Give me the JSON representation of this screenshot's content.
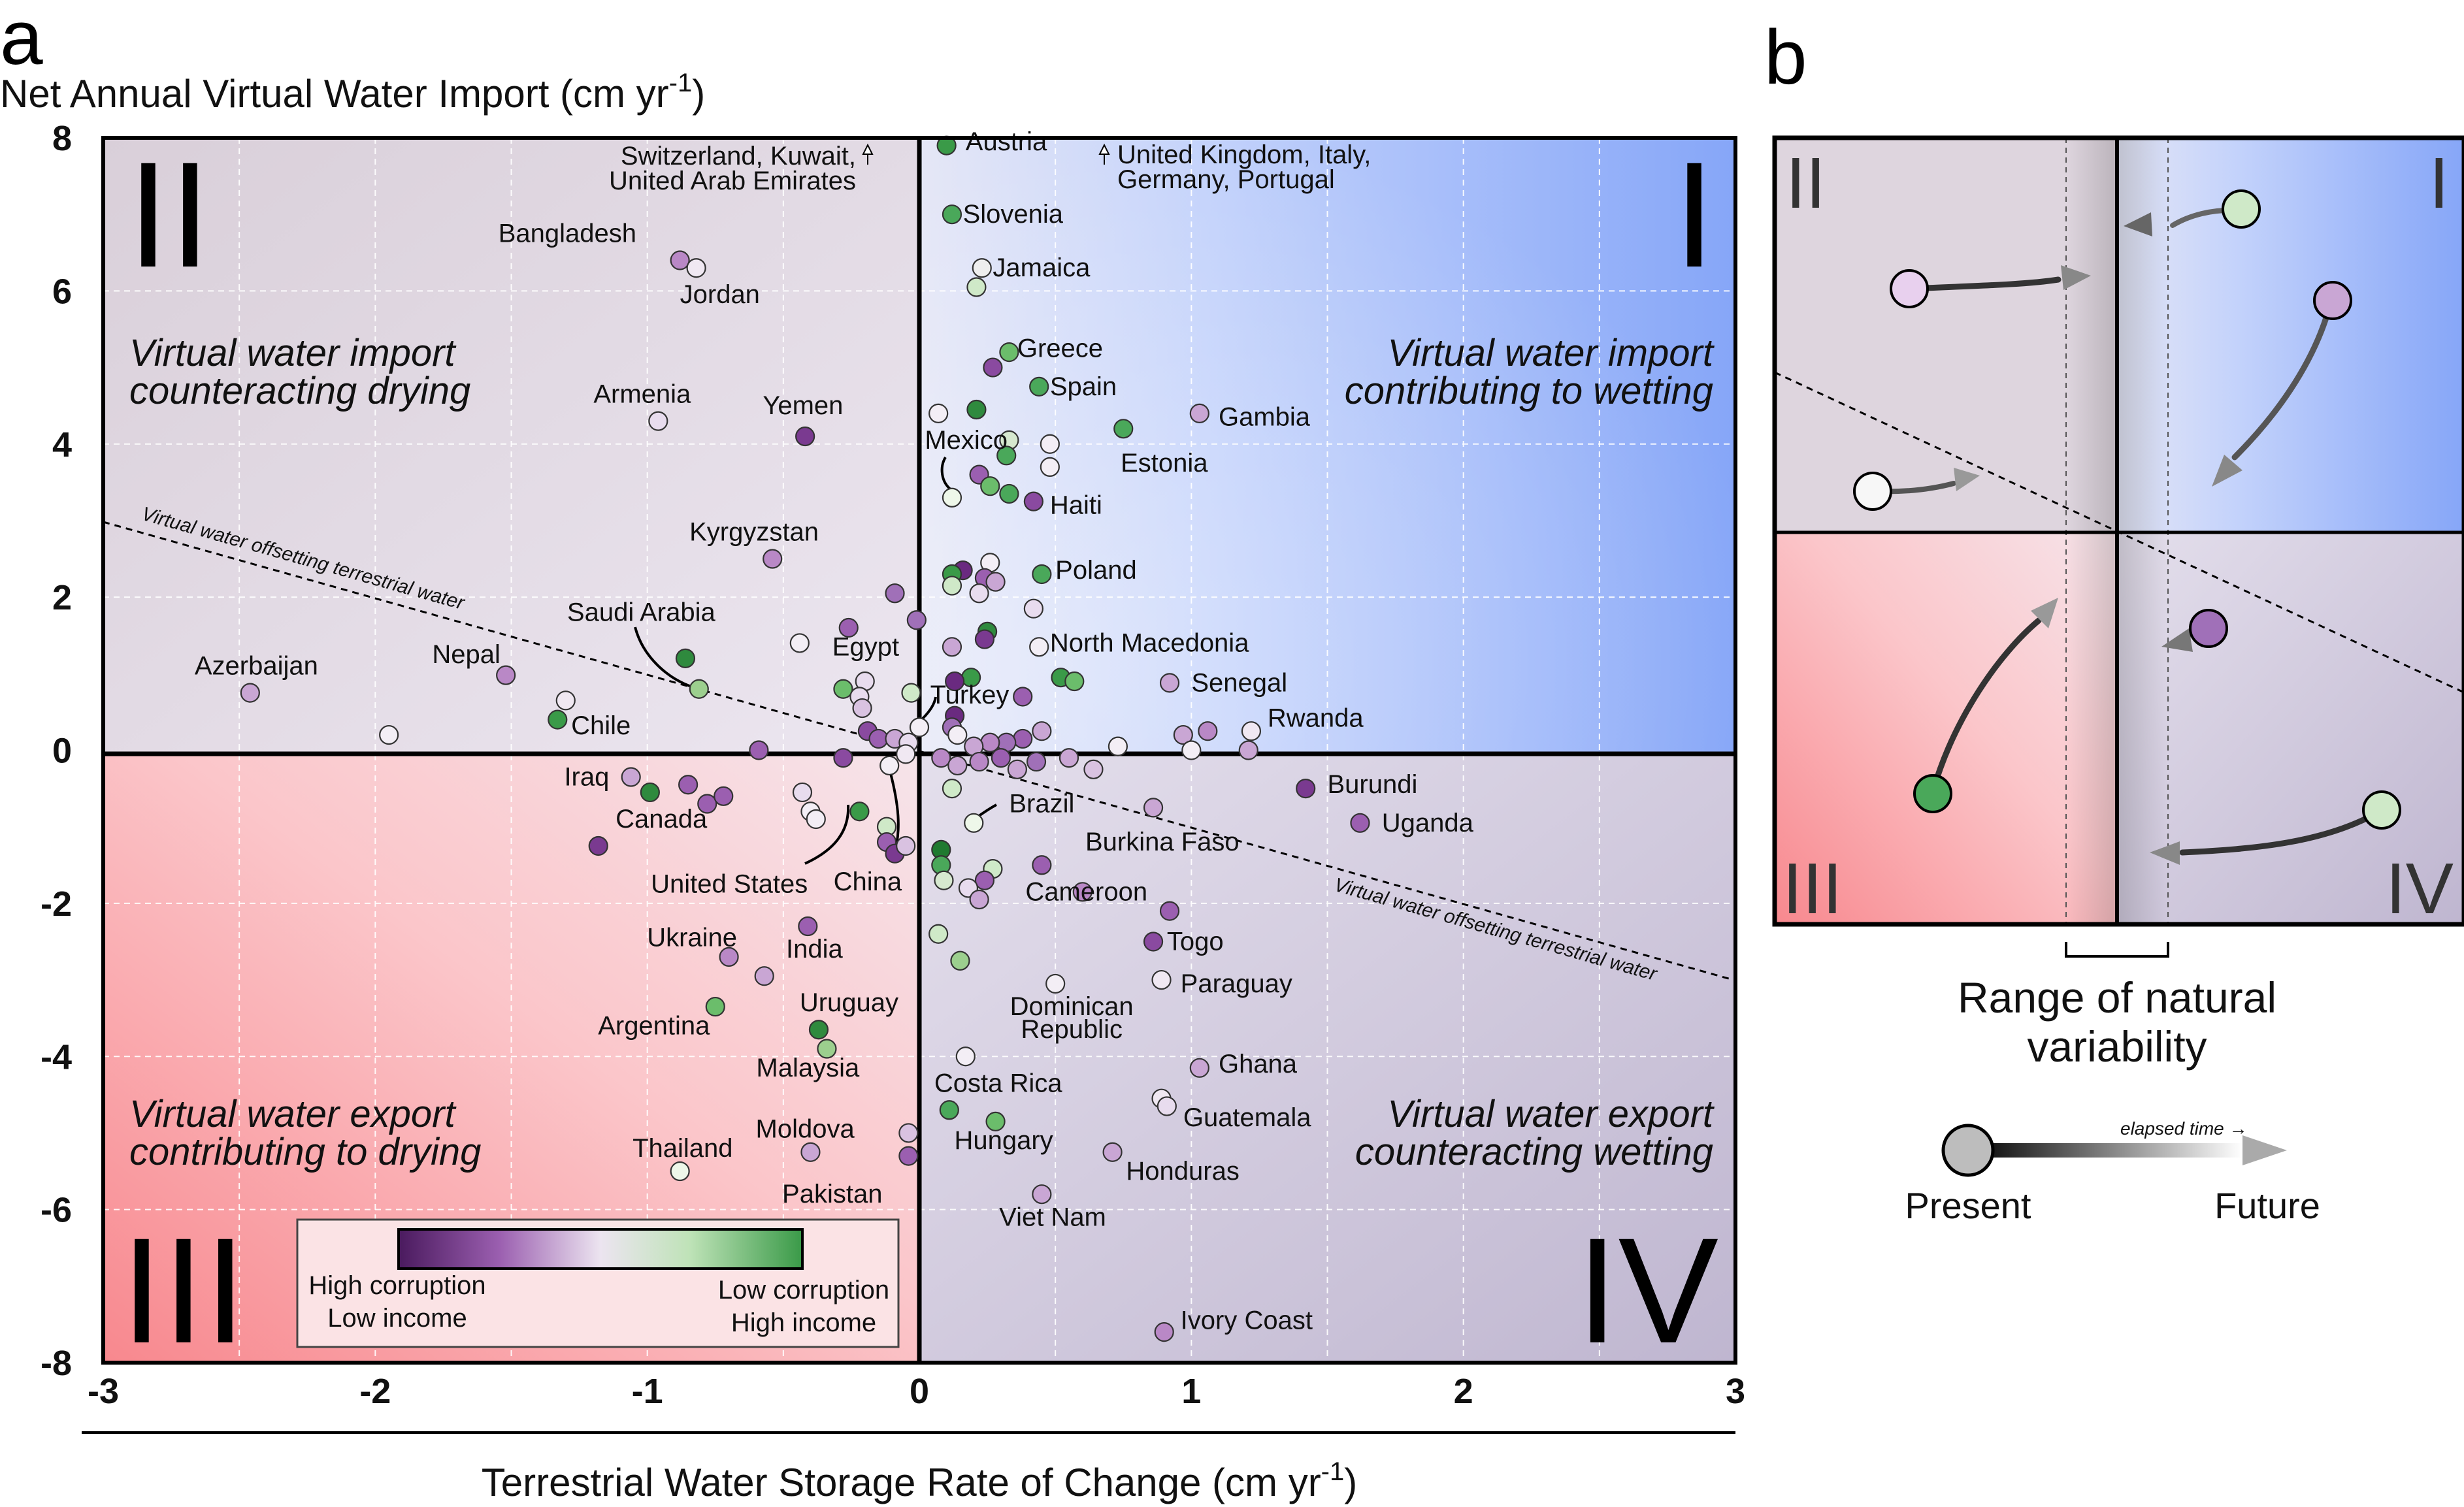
{
  "panel_a": {
    "letter": "a",
    "y_title": "Net Annual Virtual Water Import (cm yr",
    "y_title_sup": "-1",
    "y_title_end": ")",
    "x_title": "Terrestrial Water Storage Rate of Change (cm yr",
    "x_title_sup": "-1",
    "x_title_end": ")",
    "quadrants": {
      "q1": "I",
      "q2": "II",
      "q3": "III",
      "q4": "IV"
    },
    "quadrant_text": {
      "q2_l1": "Virtual water import",
      "q2_l2": "counteracting drying",
      "q1_l1": "Virtual water import",
      "q1_l2": "contributing to wetting",
      "q3_l1": "Virtual water export",
      "q3_l2": "contributing to drying",
      "q4_l1": "Virtual water export",
      "q4_l2": "counteracting wetting"
    },
    "diagonal_label": "Virtual water offsetting terrestrial water",
    "offchart_left_l1": "Switzerland, Kuwait,",
    "offchart_left_l2": "United Arab Emirates",
    "offchart_right_l1": "United Kingdom, Italy,",
    "offchart_right_l2": "Germany, Portugal",
    "legend": {
      "left_l1": "High corruption",
      "left_l2": "Low income",
      "right_l1": "Low corruption",
      "right_l2": "High income",
      "gradient": [
        "#4a1a5e",
        "#9b5fb0",
        "#e8dcee",
        "#bfe3b8",
        "#3a9a48"
      ]
    },
    "colors": {
      "q1": "#8aaaf8",
      "q2": "#dcd4de",
      "q3": "#f58f95",
      "q4": "#c5bfd4"
    }
  },
  "chart_data": {
    "type": "scatter",
    "xlabel": "Terrestrial Water Storage Rate of Change (cm yr-1)",
    "ylabel": "Net Annual Virtual Water Import (cm yr-1)",
    "xlim": [
      -3,
      3
    ],
    "ylim": [
      -8,
      8
    ],
    "xticks": [
      "-3",
      "-2",
      "-1",
      "0",
      "1",
      "2",
      "3"
    ],
    "yticks": [
      "8",
      "6",
      "4",
      "2",
      "0",
      "-2",
      "-4",
      "-6",
      "-8"
    ],
    "grid": true,
    "points": [
      {
        "x": 0.1,
        "y": 7.9,
        "c": "#3a9a48"
      },
      {
        "x": 0.12,
        "y": 7.0,
        "c": "#4aa85a"
      },
      {
        "x": 0.23,
        "y": 6.3,
        "c": "#eeeeee"
      },
      {
        "x": 0.21,
        "y": 6.05,
        "c": "#cfe9c8"
      },
      {
        "x": -0.88,
        "y": 6.4,
        "c": "#b988c6"
      },
      {
        "x": -0.82,
        "y": 6.3,
        "c": "#f0e8f2"
      },
      {
        "x": 0.33,
        "y": 5.2,
        "c": "#6bbd6b"
      },
      {
        "x": 0.27,
        "y": 5.0,
        "c": "#8a4aa0"
      },
      {
        "x": 0.44,
        "y": 4.75,
        "c": "#4aa85a"
      },
      {
        "x": 0.07,
        "y": 4.4,
        "c": "#f3eef5"
      },
      {
        "x": 0.21,
        "y": 4.45,
        "c": "#2f8a3e"
      },
      {
        "x": 0.75,
        "y": 4.2,
        "c": "#4aa85a"
      },
      {
        "x": 1.03,
        "y": 4.4,
        "c": "#c9a6d4"
      },
      {
        "x": -0.96,
        "y": 4.3,
        "c": "#e8dcee"
      },
      {
        "x": -0.42,
        "y": 4.1,
        "c": "#7a3a90"
      },
      {
        "x": 0.33,
        "y": 4.05,
        "c": "#d6e8cf"
      },
      {
        "x": 0.48,
        "y": 4.0,
        "c": "#f3eef5"
      },
      {
        "x": 0.32,
        "y": 3.85,
        "c": "#4aa85a"
      },
      {
        "x": 0.48,
        "y": 3.7,
        "c": "#f3eef5"
      },
      {
        "x": 0.22,
        "y": 3.6,
        "c": "#9b5fb0"
      },
      {
        "x": 0.26,
        "y": 3.45,
        "c": "#6bbd6b"
      },
      {
        "x": 0.33,
        "y": 3.35,
        "c": "#4aa85a"
      },
      {
        "x": 0.42,
        "y": 3.25,
        "c": "#8a4aa0"
      },
      {
        "x": 0.12,
        "y": 3.3,
        "c": "#eef7e9"
      },
      {
        "x": -0.54,
        "y": 2.5,
        "c": "#b988c6"
      },
      {
        "x": 0.26,
        "y": 2.45,
        "c": "#f3eef5"
      },
      {
        "x": 0.16,
        "y": 2.35,
        "c": "#6a2a80"
      },
      {
        "x": 0.12,
        "y": 2.3,
        "c": "#3a9a48"
      },
      {
        "x": 0.24,
        "y": 2.25,
        "c": "#9b5fb0"
      },
      {
        "x": 0.28,
        "y": 2.2,
        "c": "#c9a6d4"
      },
      {
        "x": 0.45,
        "y": 2.3,
        "c": "#4aa85a"
      },
      {
        "x": 0.12,
        "y": 2.15,
        "c": "#cfe9c8"
      },
      {
        "x": 0.22,
        "y": 2.05,
        "c": "#e8dcee"
      },
      {
        "x": -0.09,
        "y": 2.05,
        "c": "#a070b8"
      },
      {
        "x": 0.42,
        "y": 1.85,
        "c": "#e8dcee"
      },
      {
        "x": -0.01,
        "y": 1.7,
        "c": "#a070b8"
      },
      {
        "x": -0.26,
        "y": 1.6,
        "c": "#9b5fb0"
      },
      {
        "x": 0.25,
        "y": 1.55,
        "c": "#2f8a3e"
      },
      {
        "x": 0.24,
        "y": 1.45,
        "c": "#7a3a90"
      },
      {
        "x": -0.44,
        "y": 1.4,
        "c": "#f3eef5"
      },
      {
        "x": 0.12,
        "y": 1.35,
        "c": "#c9a6d4"
      },
      {
        "x": 0.44,
        "y": 1.35,
        "c": "#f3eef5"
      },
      {
        "x": -0.86,
        "y": 1.2,
        "c": "#2f8a3e"
      },
      {
        "x": 0.19,
        "y": 0.95,
        "c": "#3a9a48"
      },
      {
        "x": 0.52,
        "y": 0.95,
        "c": "#3a9a48"
      },
      {
        "x": 0.57,
        "y": 0.9,
        "c": "#6bbd6b"
      },
      {
        "x": 0.13,
        "y": 0.9,
        "c": "#6a2a80"
      },
      {
        "x": 0.92,
        "y": 0.88,
        "c": "#c9a6d4"
      },
      {
        "x": -0.2,
        "y": 0.9,
        "c": "#e8dcee"
      },
      {
        "x": -0.28,
        "y": 0.8,
        "c": "#6bbd6b"
      },
      {
        "x": -0.81,
        "y": 0.8,
        "c": "#9ccf8e"
      },
      {
        "x": -2.46,
        "y": 0.75,
        "c": "#c9a6d4"
      },
      {
        "x": -1.52,
        "y": 0.98,
        "c": "#b988c6"
      },
      {
        "x": -0.22,
        "y": 0.7,
        "c": "#e8dcee"
      },
      {
        "x": -0.03,
        "y": 0.75,
        "c": "#cfe9c8"
      },
      {
        "x": -1.3,
        "y": 0.65,
        "c": "#f0e8f2"
      },
      {
        "x": -0.21,
        "y": 0.55,
        "c": "#d9c2e1"
      },
      {
        "x": 0.38,
        "y": 0.7,
        "c": "#9b5fb0"
      },
      {
        "x": -1.33,
        "y": 0.4,
        "c": "#3a9a48"
      },
      {
        "x": 0.13,
        "y": 0.45,
        "c": "#6a2a80"
      },
      {
        "x": 0.12,
        "y": 0.3,
        "c": "#a070b8"
      },
      {
        "x": 0.14,
        "y": 0.2,
        "c": "#f3eef5"
      },
      {
        "x": 0.0,
        "y": 0.3,
        "c": "#f3eef5"
      },
      {
        "x": -0.19,
        "y": 0.25,
        "c": "#8a4aa0"
      },
      {
        "x": -0.15,
        "y": 0.15,
        "c": "#9b5fb0"
      },
      {
        "x": -0.09,
        "y": 0.15,
        "c": "#c9a6d4"
      },
      {
        "x": -0.04,
        "y": 0.1,
        "c": "#e8dcee"
      },
      {
        "x": 0.45,
        "y": 0.25,
        "c": "#c9a6d4"
      },
      {
        "x": 0.38,
        "y": 0.15,
        "c": "#9b5fb0"
      },
      {
        "x": 0.32,
        "y": 0.1,
        "c": "#a070b8"
      },
      {
        "x": 0.26,
        "y": 0.1,
        "c": "#b988c6"
      },
      {
        "x": 0.2,
        "y": 0.05,
        "c": "#c9a6d4"
      },
      {
        "x": -1.95,
        "y": 0.2,
        "c": "#f3eef5"
      },
      {
        "x": 0.97,
        "y": 0.2,
        "c": "#c9a6d4"
      },
      {
        "x": 1.06,
        "y": 0.25,
        "c": "#b988c6"
      },
      {
        "x": 1.22,
        "y": 0.25,
        "c": "#f0e8f2"
      },
      {
        "x": 0.73,
        "y": 0.05,
        "c": "#f3eef5"
      },
      {
        "x": 1.0,
        "y": 0.0,
        "c": "#f3eef5"
      },
      {
        "x": 1.21,
        "y": 0.0,
        "c": "#c9a6d4"
      },
      {
        "x": -0.59,
        "y": 0.0,
        "c": "#9b5fb0"
      },
      {
        "x": -0.28,
        "y": -0.1,
        "c": "#8a4aa0"
      },
      {
        "x": -0.11,
        "y": -0.2,
        "c": "#f3eef5"
      },
      {
        "x": -0.05,
        "y": -0.05,
        "c": "#f0e8f2"
      },
      {
        "x": 0.08,
        "y": -0.1,
        "c": "#b988c6"
      },
      {
        "x": 0.14,
        "y": -0.2,
        "c": "#c9a6d4"
      },
      {
        "x": 0.22,
        "y": -0.15,
        "c": "#b988c6"
      },
      {
        "x": 0.3,
        "y": -0.1,
        "c": "#9b5fb0"
      },
      {
        "x": 0.36,
        "y": -0.25,
        "c": "#c9a6d4"
      },
      {
        "x": 0.43,
        "y": -0.15,
        "c": "#a070b8"
      },
      {
        "x": 0.55,
        "y": -0.1,
        "c": "#c9a6d4"
      },
      {
        "x": 0.64,
        "y": -0.25,
        "c": "#d9c2e1"
      },
      {
        "x": 0.12,
        "y": -0.5,
        "c": "#cfe9c8"
      },
      {
        "x": -1.06,
        "y": -0.35,
        "c": "#c9a6d4"
      },
      {
        "x": -0.99,
        "y": -0.55,
        "c": "#2f8a3e"
      },
      {
        "x": -0.85,
        "y": -0.45,
        "c": "#9b5fb0"
      },
      {
        "x": -0.78,
        "y": -0.7,
        "c": "#9b5fb0"
      },
      {
        "x": -0.72,
        "y": -0.6,
        "c": "#9b5fb0"
      },
      {
        "x": -0.43,
        "y": -0.55,
        "c": "#e8dcee"
      },
      {
        "x": -0.4,
        "y": -0.8,
        "c": "#f3eef5"
      },
      {
        "x": -0.38,
        "y": -0.9,
        "c": "#f3eef5"
      },
      {
        "x": -0.22,
        "y": -0.8,
        "c": "#3a9a48"
      },
      {
        "x": -1.18,
        "y": -1.25,
        "c": "#7a3a90"
      },
      {
        "x": -0.12,
        "y": -1.0,
        "c": "#cfe9c8"
      },
      {
        "x": -0.12,
        "y": -1.2,
        "c": "#9b5fb0"
      },
      {
        "x": -0.09,
        "y": -1.35,
        "c": "#7a3a90"
      },
      {
        "x": -0.05,
        "y": -1.25,
        "c": "#d9c2e1"
      },
      {
        "x": 0.08,
        "y": -1.3,
        "c": "#1f7a30"
      },
      {
        "x": 0.08,
        "y": -1.5,
        "c": "#4aa85a"
      },
      {
        "x": 0.2,
        "y": -0.95,
        "c": "#eef7e9"
      },
      {
        "x": 0.86,
        "y": -0.75,
        "c": "#c9a6d4"
      },
      {
        "x": 1.42,
        "y": -0.5,
        "c": "#7a3a90"
      },
      {
        "x": 1.62,
        "y": -0.95,
        "c": "#9b5fb0"
      },
      {
        "x": 0.27,
        "y": -1.55,
        "c": "#cfe9c8"
      },
      {
        "x": 0.24,
        "y": -1.7,
        "c": "#9b5fb0"
      },
      {
        "x": 0.09,
        "y": -1.7,
        "c": "#d6e8cf"
      },
      {
        "x": 0.18,
        "y": -1.8,
        "c": "#e8dcee"
      },
      {
        "x": 0.22,
        "y": -1.95,
        "c": "#c9a6d4"
      },
      {
        "x": 0.45,
        "y": -1.5,
        "c": "#9b5fb0"
      },
      {
        "x": 0.6,
        "y": -1.85,
        "c": "#b988c6"
      },
      {
        "x": 0.92,
        "y": -2.1,
        "c": "#9b5fb0"
      },
      {
        "x": -0.41,
        "y": -2.3,
        "c": "#9b5fb0"
      },
      {
        "x": -0.7,
        "y": -2.7,
        "c": "#b988c6"
      },
      {
        "x": -0.57,
        "y": -2.95,
        "c": "#c9a6d4"
      },
      {
        "x": 0.07,
        "y": -2.4,
        "c": "#cfe9c8"
      },
      {
        "x": 0.15,
        "y": -2.75,
        "c": "#9ccf8e"
      },
      {
        "x": 0.86,
        "y": -2.5,
        "c": "#8a4aa0"
      },
      {
        "x": 0.89,
        "y": -3.0,
        "c": "#f0e8f2"
      },
      {
        "x": 0.5,
        "y": -3.05,
        "c": "#f3eef5"
      },
      {
        "x": -0.75,
        "y": -3.35,
        "c": "#6bbd6b"
      },
      {
        "x": -0.37,
        "y": -3.65,
        "c": "#2f8a3e"
      },
      {
        "x": -0.34,
        "y": -3.9,
        "c": "#9ccf8e"
      },
      {
        "x": 0.17,
        "y": -4.0,
        "c": "#f3eef5"
      },
      {
        "x": 1.03,
        "y": -4.15,
        "c": "#c9a6d4"
      },
      {
        "x": 0.89,
        "y": -4.55,
        "c": "#f0e8f2"
      },
      {
        "x": 0.91,
        "y": -4.65,
        "c": "#e8dcee"
      },
      {
        "x": 0.11,
        "y": -4.7,
        "c": "#4aa85a"
      },
      {
        "x": 0.28,
        "y": -4.85,
        "c": "#6bbd6b"
      },
      {
        "x": -0.04,
        "y": -5.0,
        "c": "#d9c2e1"
      },
      {
        "x": -0.04,
        "y": -5.3,
        "c": "#9b5fb0"
      },
      {
        "x": 0.71,
        "y": -5.25,
        "c": "#c9a6d4"
      },
      {
        "x": -0.4,
        "y": -5.25,
        "c": "#c9a6d4"
      },
      {
        "x": -0.88,
        "y": -5.5,
        "c": "#eef7e9"
      },
      {
        "x": 0.45,
        "y": -5.8,
        "c": "#c9a6d4"
      },
      {
        "x": 0.9,
        "y": -7.6,
        "c": "#b988c6"
      }
    ],
    "labels": [
      {
        "t": "Austria",
        "x": 0.17,
        "y": 7.95,
        "a": "start"
      },
      {
        "t": "Slovenia",
        "x": 0.16,
        "y": 7.0,
        "a": "start"
      },
      {
        "t": "Jamaica",
        "x": 0.27,
        "y": 6.3,
        "a": "start"
      },
      {
        "t": "Bangladesh",
        "x": -1.04,
        "y": 6.75,
        "a": "end"
      },
      {
        "t": "Jordan",
        "x": -0.88,
        "y": 5.95,
        "a": "start"
      },
      {
        "t": "Greece",
        "x": 0.36,
        "y": 5.25,
        "a": "start"
      },
      {
        "t": "Spain",
        "x": 0.48,
        "y": 4.75,
        "a": "start"
      },
      {
        "t": "Armenia",
        "x": -0.84,
        "y": 4.65,
        "a": "end"
      },
      {
        "t": "Yemen",
        "x": -0.28,
        "y": 4.5,
        "a": "end"
      },
      {
        "t": "Gambia",
        "x": 1.1,
        "y": 4.35,
        "a": "start"
      },
      {
        "t": "Mexico",
        "x": 0.02,
        "y": 4.05,
        "a": "start"
      },
      {
        "t": "Estonia",
        "x": 0.74,
        "y": 3.75,
        "a": "start"
      },
      {
        "t": "Haiti",
        "x": 0.48,
        "y": 3.2,
        "a": "start"
      },
      {
        "t": "Kyrgyzstan",
        "x": -0.37,
        "y": 2.85,
        "a": "end"
      },
      {
        "t": "Poland",
        "x": 0.5,
        "y": 2.35,
        "a": "start"
      },
      {
        "t": "Saudi Arabia",
        "x": -0.75,
        "y": 1.8,
        "a": "end"
      },
      {
        "t": "Egypt",
        "x": -0.32,
        "y": 1.35,
        "a": "start"
      },
      {
        "t": "North Macedonia",
        "x": 0.48,
        "y": 1.4,
        "a": "start"
      },
      {
        "t": "Nepal",
        "x": -1.54,
        "y": 1.25,
        "a": "end"
      },
      {
        "t": "Azerbaijan",
        "x": -2.21,
        "y": 1.1,
        "a": "end"
      },
      {
        "t": "Senegal",
        "x": 1.0,
        "y": 0.88,
        "a": "start"
      },
      {
        "t": "Turkey",
        "x": 0.04,
        "y": 0.72,
        "a": "start"
      },
      {
        "t": "Rwanda",
        "x": 1.28,
        "y": 0.42,
        "a": "start"
      },
      {
        "t": "Chile",
        "x": -1.28,
        "y": 0.32,
        "a": "start"
      },
      {
        "t": "Burundi",
        "x": 1.5,
        "y": -0.45,
        "a": "start"
      },
      {
        "t": "Iraq",
        "x": -1.14,
        "y": -0.35,
        "a": "end"
      },
      {
        "t": "Brazil",
        "x": 0.33,
        "y": -0.7,
        "a": "start"
      },
      {
        "t": "Canada",
        "x": -0.78,
        "y": -0.9,
        "a": "end"
      },
      {
        "t": "Uganda",
        "x": 1.7,
        "y": -0.95,
        "a": "start"
      },
      {
        "t": "Burkina Faso",
        "x": 0.61,
        "y": -1.2,
        "a": "start"
      },
      {
        "t": "United States",
        "x": -0.41,
        "y": -1.75,
        "a": "end"
      },
      {
        "t": "China",
        "x": -0.19,
        "y": -1.72,
        "a": "middle"
      },
      {
        "t": "Cameroon",
        "x": 0.39,
        "y": -1.85,
        "a": "start"
      },
      {
        "t": "Ukraine",
        "x": -0.67,
        "y": -2.45,
        "a": "end"
      },
      {
        "t": "India",
        "x": -0.49,
        "y": -2.6,
        "a": "start"
      },
      {
        "t": "Togo",
        "x": 0.91,
        "y": -2.5,
        "a": "start"
      },
      {
        "t": "Paraguay",
        "x": 0.96,
        "y": -3.05,
        "a": "start"
      },
      {
        "t": "Uruguay",
        "x": -0.44,
        "y": -3.3,
        "a": "start"
      },
      {
        "t": "Dominican",
        "x": 0.56,
        "y": -3.35,
        "a": "middle"
      },
      {
        "t": "Republic",
        "x": 0.56,
        "y": -3.65,
        "a": "middle"
      },
      {
        "t": "Argentina",
        "x": -0.77,
        "y": -3.6,
        "a": "end"
      },
      {
        "t": "Malaysia",
        "x": -0.41,
        "y": -4.15,
        "a": "middle"
      },
      {
        "t": "Ghana",
        "x": 1.1,
        "y": -4.1,
        "a": "start"
      },
      {
        "t": "Costa Rica",
        "x": 0.29,
        "y": -4.35,
        "a": "middle"
      },
      {
        "t": "Guatemala",
        "x": 0.97,
        "y": -4.8,
        "a": "start"
      },
      {
        "t": "Moldova",
        "x": -0.42,
        "y": -4.95,
        "a": "middle"
      },
      {
        "t": "Hungary",
        "x": 0.31,
        "y": -5.1,
        "a": "middle"
      },
      {
        "t": "Thailand",
        "x": -0.87,
        "y": -5.2,
        "a": "middle"
      },
      {
        "t": "Honduras",
        "x": 0.76,
        "y": -5.5,
        "a": "start"
      },
      {
        "t": "Pakistan",
        "x": -0.32,
        "y": -5.8,
        "a": "middle"
      },
      {
        "t": "Viet Nam",
        "x": 0.49,
        "y": -6.1,
        "a": "middle"
      },
      {
        "t": "Ivory Coast",
        "x": 0.96,
        "y": -7.45,
        "a": "start"
      }
    ]
  },
  "panel_b": {
    "letter": "b",
    "quadrants": {
      "q1": "I",
      "q2": "II",
      "q3": "III",
      "q4": "IV"
    },
    "caption_l1": "Range of natural",
    "caption_l2": "variability",
    "elapsed": "elapsed time →",
    "present": "Present",
    "future": "Future"
  }
}
